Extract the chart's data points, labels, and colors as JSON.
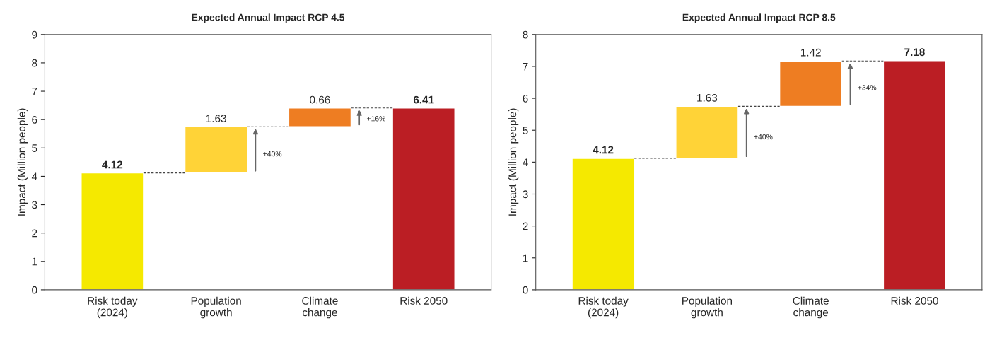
{
  "chart_data": [
    {
      "type": "bar",
      "title": "Expected Annual Impact RCP 4.5",
      "ylabel": "Impact (Million people)",
      "categories": [
        "Risk today\n(2024)",
        "Population\ngrowth",
        "Climate\nchange",
        "Risk 2050"
      ],
      "values": [
        4.12,
        1.63,
        0.66,
        6.41
      ],
      "base": [
        0,
        4.12,
        5.75,
        0
      ],
      "colors": [
        "#f5e900",
        "#ffd337",
        "#ee7d22",
        "#bb1e24"
      ],
      "data_labels": true,
      "ylim": [
        0,
        9
      ],
      "yticks": [
        0,
        1,
        2,
        3,
        4,
        5,
        6,
        7,
        8,
        9
      ],
      "annotations": [
        "+40%",
        "+16%"
      ]
    },
    {
      "type": "bar",
      "title": "Expected Annual Impact RCP 8.5",
      "ylabel": "Impact (Million people)",
      "categories": [
        "Risk today\n(2024)",
        "Population\ngrowth",
        "Climate\nchange",
        "Risk 2050"
      ],
      "values": [
        4.12,
        1.63,
        1.42,
        7.18
      ],
      "base": [
        0,
        4.12,
        5.75,
        0
      ],
      "colors": [
        "#f5e900",
        "#ffd337",
        "#ee7d22",
        "#bb1e24"
      ],
      "data_labels": true,
      "ylim": [
        0,
        8
      ],
      "yticks": [
        0,
        1,
        2,
        3,
        4,
        5,
        6,
        7,
        8
      ],
      "annotations": [
        "+40%",
        "+34%"
      ]
    }
  ]
}
